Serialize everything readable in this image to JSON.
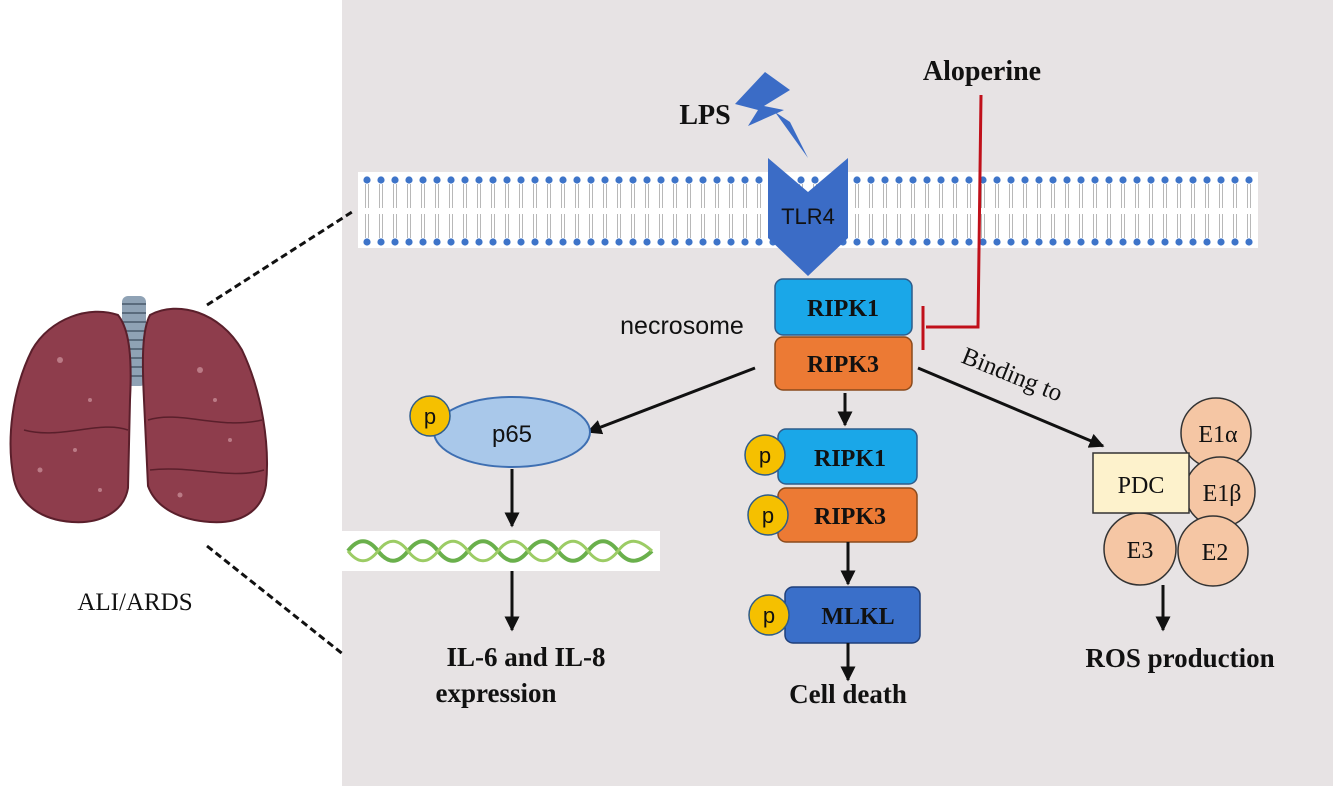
{
  "left_caption": "ALI/ARDS",
  "stimulus": {
    "lps": "LPS",
    "receptor": "TLR4",
    "inhibitor": "Aloperine"
  },
  "complex": {
    "label": "necrosome",
    "ripk1": "RIPK1",
    "ripk3": "RIPK3"
  },
  "phospho_symbol": "p",
  "nfkb_branch": {
    "protein": "p65",
    "outcome_line1": "IL-6 and IL-8",
    "outcome_line2": "expression"
  },
  "necroptosis_branch": {
    "ripk1": "RIPK1",
    "ripk3": "RIPK3",
    "mlkl": "MLKL",
    "outcome": "Cell death"
  },
  "pdc_branch": {
    "edge_label": "Binding to",
    "complex": "PDC",
    "subunits": {
      "e1a": "E1α",
      "e1b": "E1β",
      "e2": "E2",
      "e3": "E3"
    },
    "outcome": "ROS production"
  },
  "colors": {
    "panel": "#e7e3e4",
    "ripk1": "#1aa7e8",
    "ripk3": "#ec7a34",
    "mlkl": "#3a6fc9",
    "tlr4": "#3b6cc6",
    "phospho": "#f5c000",
    "p65": "#a9c8ea",
    "pdc": "#fdf2cc",
    "subunit": "#f5c6a4",
    "inhibit": "#c0101a",
    "lung": "#8e3d4c"
  }
}
